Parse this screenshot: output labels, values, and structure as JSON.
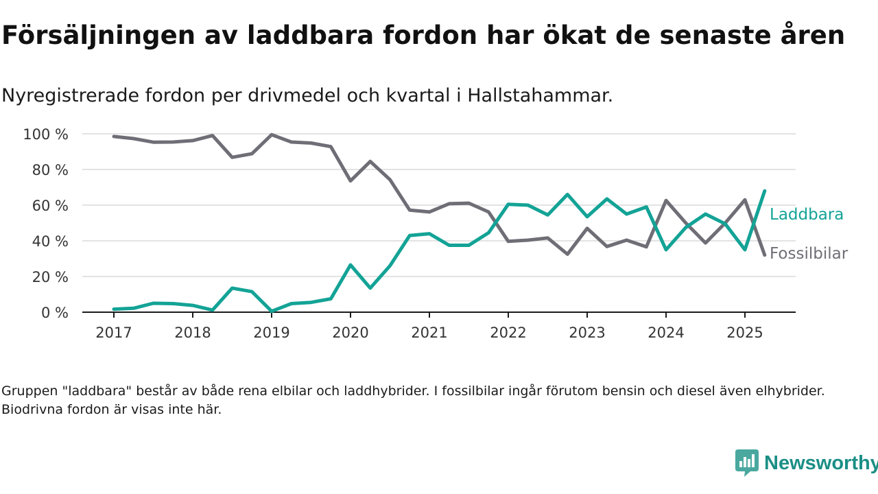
{
  "header": {
    "title": "Försäljningen av laddbara fordon har ökat de senaste åren",
    "subtitle": "Nyregistrerade fordon per drivmedel och kvartal i Hallstahammar."
  },
  "chart_data": {
    "type": "line",
    "title": "Försäljningen av laddbara fordon har ökat de senaste åren",
    "subtitle": "Nyregistrerade fordon per drivmedel och kvartal i Hallstahammar.",
    "xlabel": "",
    "ylabel": "",
    "x_ticks": [
      "2017",
      "2018",
      "2019",
      "2020",
      "2021",
      "2022",
      "2023",
      "2024",
      "2025"
    ],
    "y_ticks": [
      "0 %",
      "20 %",
      "40 %",
      "60 %",
      "80 %",
      "100 %"
    ],
    "xlim": [
      2017,
      2025.25
    ],
    "ylim": [
      0,
      100
    ],
    "x_unit": "year (quarterly)",
    "y_unit": "%",
    "grid": "horizontal",
    "legend": "inline-right",
    "x": [
      2017.0,
      2017.25,
      2017.5,
      2017.75,
      2018.0,
      2018.25,
      2018.5,
      2018.75,
      2019.0,
      2019.25,
      2019.5,
      2019.75,
      2020.0,
      2020.25,
      2020.5,
      2020.75,
      2021.0,
      2021.25,
      2021.5,
      2021.75,
      2022.0,
      2022.25,
      2022.5,
      2022.75,
      2023.0,
      2023.25,
      2023.5,
      2023.75,
      2024.0,
      2024.25,
      2024.5,
      2024.75,
      2025.0,
      2025.25
    ],
    "series": [
      {
        "name": "Laddbara",
        "color": "#13a396",
        "values": [
          1.7,
          2.2,
          5.0,
          4.8,
          3.8,
          1.2,
          13.5,
          11.5,
          0.5,
          4.8,
          5.5,
          7.5,
          26.5,
          13.5,
          26.0,
          43.0,
          44.0,
          37.5,
          37.5,
          44.5,
          60.5,
          60.0,
          54.5,
          66.0,
          53.5,
          63.5,
          55.0,
          59.0,
          35.0,
          47.5,
          55.0,
          49.5,
          35.0,
          68.0
        ]
      },
      {
        "name": "Fossilbilar",
        "color": "#6f6e76",
        "values": [
          98.5,
          97.3,
          95.3,
          95.4,
          96.2,
          99.0,
          86.8,
          88.8,
          99.5,
          95.4,
          94.8,
          92.8,
          73.6,
          84.5,
          74.3,
          57.2,
          56.2,
          60.8,
          61.1,
          56.2,
          39.7,
          40.4,
          41.6,
          32.5,
          47.0,
          36.8,
          40.4,
          36.6,
          62.6,
          50.0,
          38.8,
          50.0,
          63.0,
          32.0
        ]
      }
    ]
  },
  "footer": {
    "note": "Gruppen \"laddbara\" består av både rena elbilar och laddhybrider. I fossilbilar ingår förutom bensin och diesel även elhybrider. Biodrivna fordon är visas inte här.",
    "brand_name": "Newsworthy",
    "brand_color": "#1b8f86"
  }
}
